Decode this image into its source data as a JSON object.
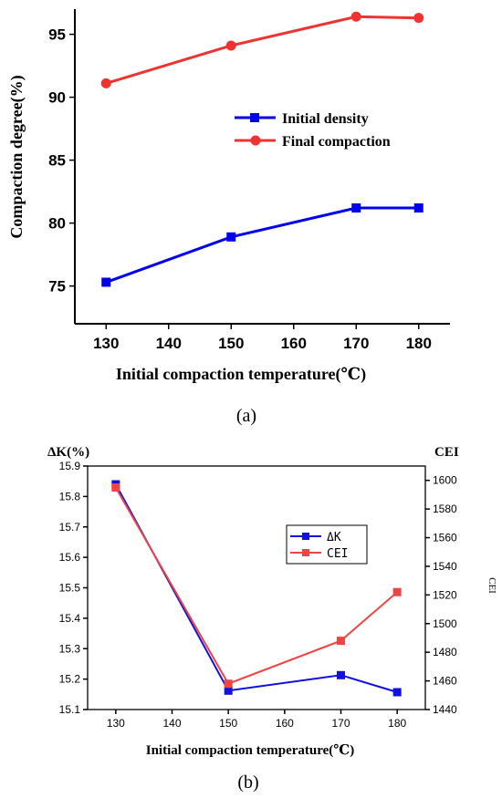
{
  "chart_data": [
    {
      "type": "line",
      "panel_label": "(a)",
      "xlabel": "Initial compaction temperature(℃)",
      "ylabel": "Compaction degree(%)",
      "xlim": [
        125,
        185
      ],
      "ylim": [
        72,
        97
      ],
      "xticks": [
        130,
        140,
        150,
        160,
        170,
        180
      ],
      "yticks": [
        75,
        80,
        85,
        90,
        95
      ],
      "legend_position": "center-right",
      "series": [
        {
          "name": "Initial density",
          "color": "#0000ee",
          "marker": "square",
          "x": [
            130,
            150,
            170,
            180
          ],
          "y": [
            75.3,
            78.9,
            81.2,
            81.2
          ]
        },
        {
          "name": "Final compaction",
          "color": "#ee3333",
          "marker": "circle",
          "x": [
            130,
            150,
            170,
            180
          ],
          "y": [
            91.1,
            94.1,
            96.4,
            96.3
          ]
        }
      ]
    },
    {
      "type": "line",
      "panel_label": "(b)",
      "xlabel": "Initial compaction temperature(℃)",
      "ylabel_left": "ΔK(%)",
      "ylabel_right": "CEI",
      "ylabel_right_rotated": "CEI",
      "xlim": [
        125,
        185
      ],
      "ylim_left": [
        15.1,
        15.9
      ],
      "ylim_right": [
        1440,
        1610
      ],
      "xticks": [
        130,
        140,
        150,
        160,
        170,
        180
      ],
      "yticks_left": [
        "15.1",
        "15.2",
        "15.3",
        "15.4",
        "15.5",
        "15.6",
        "15.7",
        "15.8",
        "15.9"
      ],
      "yticks_right": [
        "1440",
        "1460",
        "1480",
        "1500",
        "1520",
        "1540",
        "1560",
        "1580",
        "1600"
      ],
      "legend_position": "center-right",
      "series": [
        {
          "name": "ΔK",
          "color": "#1111dd",
          "marker": "square",
          "axis": "left",
          "x": [
            130,
            150,
            170,
            180
          ],
          "y": [
            15.84,
            15.162,
            15.213,
            15.157
          ]
        },
        {
          "name": "CEI",
          "color": "#ee4444",
          "marker": "square",
          "axis": "right",
          "x": [
            130,
            150,
            170,
            180
          ],
          "y": [
            1595,
            1458,
            1488,
            1522
          ]
        }
      ]
    }
  ]
}
